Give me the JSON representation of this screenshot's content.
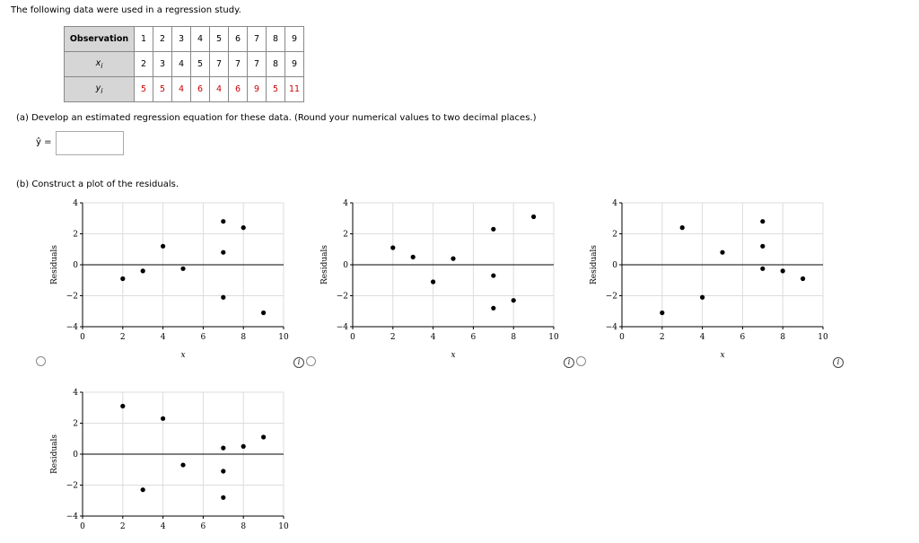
{
  "intro": "The following data were used in a regression study.",
  "table": {
    "headers": [
      "Observation",
      "x_i",
      "y_i"
    ],
    "header_labels": {
      "obs": "Observation",
      "x": "x",
      "x_sub": "i",
      "y": "y",
      "y_sub": "i"
    },
    "observation": [
      "1",
      "2",
      "3",
      "4",
      "5",
      "6",
      "7",
      "8",
      "9"
    ],
    "x": [
      "2",
      "3",
      "4",
      "5",
      "7",
      "7",
      "7",
      "8",
      "9"
    ],
    "y": [
      "5",
      "5",
      "4",
      "6",
      "4",
      "6",
      "9",
      "5",
      "11"
    ]
  },
  "part_a": {
    "text": "(a)  Develop an estimated regression equation for these data. (Round your numerical values to two decimal places.)",
    "yhat_label": "ŷ =",
    "answer_value": ""
  },
  "part_b": {
    "text": "(b)  Construct a plot of the residuals."
  },
  "plot_labels": {
    "ylabel": "Residuals",
    "xlabel": "x",
    "info": "i"
  },
  "chart_data": [
    {
      "type": "scatter",
      "option": 1,
      "xlabel": "x",
      "ylabel": "Residuals",
      "xlim": [
        0,
        10
      ],
      "ylim": [
        -4,
        4
      ],
      "xticks": [
        "0",
        "2",
        "4",
        "6",
        "8",
        "10"
      ],
      "yticks": [
        "4",
        "2",
        "0",
        "−2",
        "−4"
      ],
      "points": [
        [
          2,
          -0.9
        ],
        [
          3,
          -0.4
        ],
        [
          4,
          1.2
        ],
        [
          5,
          -0.25
        ],
        [
          7,
          2.8
        ],
        [
          7,
          0.8
        ],
        [
          7,
          -2.1
        ],
        [
          8,
          2.4
        ],
        [
          9,
          -3.1
        ]
      ]
    },
    {
      "type": "scatter",
      "option": 2,
      "xlabel": "x",
      "ylabel": "Residuals",
      "xlim": [
        0,
        10
      ],
      "ylim": [
        -4,
        4
      ],
      "xticks": [
        "0",
        "2",
        "4",
        "6",
        "8",
        "10"
      ],
      "yticks": [
        "4",
        "2",
        "0",
        "−2",
        "−4"
      ],
      "points": [
        [
          2,
          1.1
        ],
        [
          3,
          0.5
        ],
        [
          4,
          -1.1
        ],
        [
          5,
          0.4
        ],
        [
          7,
          2.3
        ],
        [
          7,
          -0.7
        ],
        [
          7,
          -2.8
        ],
        [
          8,
          -2.3
        ],
        [
          9,
          3.1
        ]
      ]
    },
    {
      "type": "scatter",
      "option": 3,
      "xlabel": "x",
      "ylabel": "Residuals",
      "xlim": [
        0,
        10
      ],
      "ylim": [
        -4,
        4
      ],
      "xticks": [
        "0",
        "2",
        "4",
        "6",
        "8",
        "10"
      ],
      "yticks": [
        "4",
        "2",
        "0",
        "−2",
        "−4"
      ],
      "points": [
        [
          2,
          -3.1
        ],
        [
          3,
          2.4
        ],
        [
          4,
          -2.1
        ],
        [
          5,
          0.8
        ],
        [
          7,
          2.8
        ],
        [
          7,
          1.2
        ],
        [
          7,
          -0.25
        ],
        [
          8,
          -0.4
        ],
        [
          9,
          -0.9
        ]
      ]
    },
    {
      "type": "scatter",
      "option": 4,
      "xlabel": "x",
      "ylabel": "Residuals",
      "xlim": [
        0,
        10
      ],
      "ylim": [
        -4,
        4
      ],
      "xticks": [
        "0",
        "2",
        "4",
        "6",
        "8",
        "10"
      ],
      "yticks": [
        "4",
        "2",
        "0",
        "−2",
        "−4"
      ],
      "points": [
        [
          2,
          3.1
        ],
        [
          3,
          -2.3
        ],
        [
          4,
          2.3
        ],
        [
          5,
          -0.7
        ],
        [
          7,
          0.4
        ],
        [
          7,
          -1.1
        ],
        [
          7,
          -2.8
        ],
        [
          8,
          0.5
        ],
        [
          9,
          1.1
        ]
      ]
    }
  ]
}
